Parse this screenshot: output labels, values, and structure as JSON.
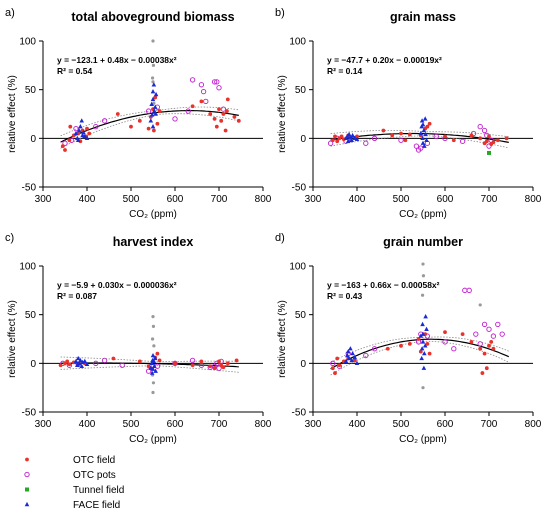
{
  "legend": [
    {
      "key": "otc_field",
      "label": "OTC field",
      "marker": "dot",
      "color": "#e8322b"
    },
    {
      "key": "otc_pots",
      "label": "OTC pots",
      "marker": "ring",
      "color": "#c21bd0"
    },
    {
      "key": "tunnel_field",
      "label": "Tunnel field",
      "marker": "square",
      "color": "#22aa22"
    },
    {
      "key": "face_field",
      "label": "FACE field",
      "marker": "triangle",
      "color": "#1a2bd6"
    }
  ],
  "colors": {
    "fit_line": "#000000",
    "ci_band": "#888888",
    "zero_line": "#000000",
    "outlier": "#999999"
  },
  "chart_data": [
    {
      "panel": "a)",
      "type": "scatter",
      "title": "total aboveground biomass",
      "equation": "y = −123.1 + 0.48x − 0.00038x²",
      "r2": "R² = 0.54",
      "xlabel": "CO₂ (ppm)",
      "ylabel": "relative effect (%)",
      "xlim": [
        300,
        800
      ],
      "ylim": [
        -50,
        100
      ],
      "xticks": [
        300,
        400,
        500,
        600,
        700,
        800
      ],
      "yticks": [
        -50,
        0,
        50,
        100
      ],
      "fit": [
        -123.1,
        0.48,
        -0.00038
      ],
      "series": {
        "otc_field": [
          [
            345,
            -8
          ],
          [
            350,
            -12
          ],
          [
            360,
            -2
          ],
          [
            362,
            12
          ],
          [
            370,
            3
          ],
          [
            380,
            5
          ],
          [
            385,
            -3
          ],
          [
            390,
            8
          ],
          [
            398,
            2
          ],
          [
            400,
            10
          ],
          [
            405,
            5
          ],
          [
            470,
            25
          ],
          [
            500,
            12
          ],
          [
            520,
            18
          ],
          [
            540,
            10
          ],
          [
            545,
            22
          ],
          [
            550,
            30
          ],
          [
            552,
            8
          ],
          [
            555,
            42
          ],
          [
            560,
            15
          ],
          [
            565,
            28
          ],
          [
            640,
            33
          ],
          [
            660,
            38
          ],
          [
            680,
            25
          ],
          [
            690,
            20
          ],
          [
            695,
            12
          ],
          [
            700,
            30
          ],
          [
            705,
            18
          ],
          [
            710,
            25
          ],
          [
            715,
            8
          ],
          [
            718,
            28
          ],
          [
            720,
            40
          ],
          [
            735,
            22
          ],
          [
            745,
            18
          ]
        ],
        "otc_pots": [
          [
            350,
            -5
          ],
          [
            365,
            -2
          ],
          [
            375,
            10
          ],
          [
            420,
            12
          ],
          [
            440,
            18
          ],
          [
            540,
            28
          ],
          [
            560,
            32
          ],
          [
            600,
            20
          ],
          [
            630,
            28
          ],
          [
            640,
            60
          ],
          [
            660,
            55
          ],
          [
            665,
            48
          ],
          [
            670,
            38
          ],
          [
            690,
            58
          ],
          [
            695,
            58
          ],
          [
            700,
            52
          ],
          [
            710,
            30
          ]
        ],
        "tunnel_field": [],
        "face_field": [
          [
            375,
            5
          ],
          [
            378,
            0
          ],
          [
            380,
            -2
          ],
          [
            382,
            8
          ],
          [
            385,
            12
          ],
          [
            388,
            18
          ],
          [
            390,
            3
          ],
          [
            392,
            6
          ],
          [
            395,
            2
          ],
          [
            400,
            0
          ],
          [
            545,
            18
          ],
          [
            547,
            35
          ],
          [
            548,
            24
          ],
          [
            550,
            40
          ],
          [
            550,
            48
          ],
          [
            550,
            12
          ],
          [
            552,
            55
          ],
          [
            553,
            28
          ],
          [
            555,
            32
          ],
          [
            556,
            25
          ],
          [
            557,
            45
          ]
        ],
        "outlier": [
          [
            550,
            100
          ],
          [
            551,
            75
          ],
          [
            549,
            62
          ],
          [
            550,
            58
          ],
          [
            552,
            36
          ]
        ]
      }
    },
    {
      "panel": "b)",
      "type": "scatter",
      "title": "grain mass",
      "equation": "y = −47.7 + 0.20x − 0.00019x²",
      "r2": "R² = 0.14",
      "xlabel": "CO₂ (ppm)",
      "ylabel": "relative effect (%)",
      "xlim": [
        300,
        800
      ],
      "ylim": [
        -50,
        100
      ],
      "xticks": [
        300,
        400,
        500,
        600,
        700,
        800
      ],
      "yticks": [
        -50,
        0,
        50,
        100
      ],
      "fit": [
        -47.7,
        0.2,
        -0.00019
      ],
      "series": {
        "otc_field": [
          [
            345,
            -2
          ],
          [
            350,
            2
          ],
          [
            355,
            -3
          ],
          [
            360,
            0
          ],
          [
            365,
            2
          ],
          [
            370,
            -1
          ],
          [
            380,
            3
          ],
          [
            385,
            -2
          ],
          [
            400,
            2
          ],
          [
            460,
            8
          ],
          [
            480,
            3
          ],
          [
            500,
            5
          ],
          [
            510,
            -2
          ],
          [
            520,
            4
          ],
          [
            545,
            3
          ],
          [
            555,
            10
          ],
          [
            560,
            12
          ],
          [
            565,
            15
          ],
          [
            600,
            2
          ],
          [
            620,
            -2
          ],
          [
            660,
            3
          ],
          [
            680,
            0
          ],
          [
            690,
            -5
          ],
          [
            695,
            -3
          ],
          [
            700,
            2
          ],
          [
            705,
            -6
          ],
          [
            710,
            -4
          ],
          [
            720,
            -2
          ],
          [
            740,
            0
          ]
        ],
        "otc_pots": [
          [
            340,
            -5
          ],
          [
            355,
            0
          ],
          [
            375,
            -3
          ],
          [
            420,
            -5
          ],
          [
            440,
            0
          ],
          [
            500,
            -2
          ],
          [
            535,
            -8
          ],
          [
            540,
            -12
          ],
          [
            545,
            -10
          ],
          [
            560,
            -5
          ],
          [
            580,
            2
          ],
          [
            600,
            0
          ],
          [
            640,
            -3
          ],
          [
            665,
            5
          ],
          [
            680,
            12
          ],
          [
            690,
            8
          ],
          [
            695,
            3
          ],
          [
            700,
            -8
          ],
          [
            705,
            -2
          ]
        ],
        "tunnel_field": [
          [
            700,
            -15
          ]
        ],
        "face_field": [
          [
            375,
            0
          ],
          [
            378,
            2
          ],
          [
            380,
            -3
          ],
          [
            382,
            4
          ],
          [
            385,
            1
          ],
          [
            388,
            -2
          ],
          [
            390,
            3
          ],
          [
            395,
            0
          ],
          [
            400,
            -1
          ],
          [
            545,
            5
          ],
          [
            547,
            12
          ],
          [
            548,
            18
          ],
          [
            549,
            0
          ],
          [
            550,
            -5
          ],
          [
            550,
            14
          ],
          [
            552,
            8
          ],
          [
            553,
            -8
          ],
          [
            555,
            20
          ],
          [
            556,
            4
          ],
          [
            558,
            -2
          ]
        ],
        "outlier": []
      }
    },
    {
      "panel": "c)",
      "type": "scatter",
      "title": "harvest index",
      "equation": "y = −5.9 + 0.030x − 0.000036x²",
      "r2": "R² = 0.087",
      "xlabel": "CO₂ (ppm)",
      "ylabel": "relative effect (%)",
      "xlim": [
        300,
        800
      ],
      "ylim": [
        -50,
        100
      ],
      "xticks": [
        300,
        400,
        500,
        600,
        700,
        800
      ],
      "yticks": [
        -50,
        0,
        50,
        100
      ],
      "fit": [
        -5.9,
        0.03,
        -3.6e-05
      ],
      "series": {
        "otc_field": [
          [
            340,
            -2
          ],
          [
            350,
            0
          ],
          [
            355,
            2
          ],
          [
            360,
            -1
          ],
          [
            370,
            1
          ],
          [
            380,
            -2
          ],
          [
            395,
            0
          ],
          [
            460,
            5
          ],
          [
            520,
            2
          ],
          [
            540,
            -3
          ],
          [
            545,
            -5
          ],
          [
            555,
            6
          ],
          [
            560,
            10
          ],
          [
            565,
            3
          ],
          [
            600,
            0
          ],
          [
            640,
            -2
          ],
          [
            660,
            2
          ],
          [
            680,
            -3
          ],
          [
            690,
            -5
          ],
          [
            700,
            2
          ],
          [
            705,
            -2
          ],
          [
            710,
            -4
          ],
          [
            720,
            0
          ],
          [
            740,
            3
          ]
        ],
        "otc_pots": [
          [
            345,
            0
          ],
          [
            360,
            -2
          ],
          [
            380,
            -1
          ],
          [
            420,
            0
          ],
          [
            440,
            3
          ],
          [
            480,
            -2
          ],
          [
            540,
            -8
          ],
          [
            560,
            -3
          ],
          [
            600,
            0
          ],
          [
            640,
            3
          ],
          [
            660,
            -2
          ],
          [
            680,
            -4
          ],
          [
            690,
            -3
          ],
          [
            695,
            0
          ],
          [
            700,
            -5
          ],
          [
            705,
            2
          ]
        ],
        "tunnel_field": [],
        "face_field": [
          [
            375,
            2
          ],
          [
            378,
            -2
          ],
          [
            380,
            5
          ],
          [
            382,
            0
          ],
          [
            385,
            3
          ],
          [
            388,
            -3
          ],
          [
            390,
            1
          ],
          [
            395,
            2
          ],
          [
            400,
            -1
          ],
          [
            545,
            -5
          ],
          [
            547,
            0
          ],
          [
            548,
            -10
          ],
          [
            549,
            3
          ],
          [
            550,
            8
          ],
          [
            550,
            -6
          ],
          [
            552,
            2
          ],
          [
            553,
            -3
          ],
          [
            555,
            5
          ],
          [
            556,
            -8
          ]
        ],
        "outlier": [
          [
            550,
            48
          ],
          [
            551,
            38
          ],
          [
            549,
            25
          ],
          [
            552,
            18
          ],
          [
            550,
            -30
          ],
          [
            551,
            -20
          ],
          [
            549,
            -12
          ]
        ]
      }
    },
    {
      "panel": "d)",
      "type": "scatter",
      "title": "grain number",
      "equation": "y = −163 + 0.66x − 0.00058x²",
      "r2": "R² = 0.43",
      "xlabel": "CO₂ (ppm)",
      "ylabel": "relative effect (%)",
      "xlim": [
        300,
        800
      ],
      "ylim": [
        -50,
        100
      ],
      "xticks": [
        300,
        400,
        500,
        600,
        700,
        800
      ],
      "yticks": [
        -50,
        0,
        50,
        100
      ],
      "fit": [
        -163,
        0.66,
        -0.00058
      ],
      "series": {
        "otc_field": [
          [
            345,
            -5
          ],
          [
            350,
            -10
          ],
          [
            355,
            5
          ],
          [
            360,
            -2
          ],
          [
            370,
            2
          ],
          [
            380,
            5
          ],
          [
            395,
            3
          ],
          [
            470,
            15
          ],
          [
            500,
            18
          ],
          [
            520,
            20
          ],
          [
            540,
            25
          ],
          [
            545,
            12
          ],
          [
            555,
            30
          ],
          [
            560,
            20
          ],
          [
            565,
            10
          ],
          [
            600,
            32
          ],
          [
            640,
            30
          ],
          [
            660,
            22
          ],
          [
            680,
            15
          ],
          [
            685,
            -10
          ],
          [
            690,
            10
          ],
          [
            695,
            -5
          ],
          [
            700,
            18
          ],
          [
            705,
            22
          ],
          [
            710,
            15
          ]
        ],
        "otc_pots": [
          [
            345,
            0
          ],
          [
            360,
            -3
          ],
          [
            380,
            10
          ],
          [
            420,
            8
          ],
          [
            440,
            15
          ],
          [
            540,
            22
          ],
          [
            545,
            30
          ],
          [
            560,
            28
          ],
          [
            600,
            22
          ],
          [
            620,
            15
          ],
          [
            645,
            75
          ],
          [
            655,
            75
          ],
          [
            670,
            30
          ],
          [
            680,
            20
          ],
          [
            690,
            40
          ],
          [
            700,
            35
          ],
          [
            710,
            28
          ],
          [
            720,
            40
          ],
          [
            730,
            30
          ]
        ],
        "tunnel_field": [],
        "face_field": [
          [
            375,
            2
          ],
          [
            378,
            8
          ],
          [
            380,
            12
          ],
          [
            382,
            5
          ],
          [
            385,
            15
          ],
          [
            388,
            3
          ],
          [
            390,
            10
          ],
          [
            395,
            6
          ],
          [
            400,
            0
          ],
          [
            545,
            28
          ],
          [
            547,
            5
          ],
          [
            548,
            15
          ],
          [
            549,
            40
          ],
          [
            550,
            30
          ],
          [
            550,
            22
          ],
          [
            552,
            -5
          ],
          [
            553,
            10
          ],
          [
            555,
            18
          ],
          [
            556,
            48
          ],
          [
            558,
            35
          ]
        ],
        "outlier": [
          [
            550,
            102
          ],
          [
            551,
            90
          ],
          [
            549,
            70
          ],
          [
            550,
            -25
          ],
          [
            680,
            60
          ]
        ]
      }
    }
  ]
}
